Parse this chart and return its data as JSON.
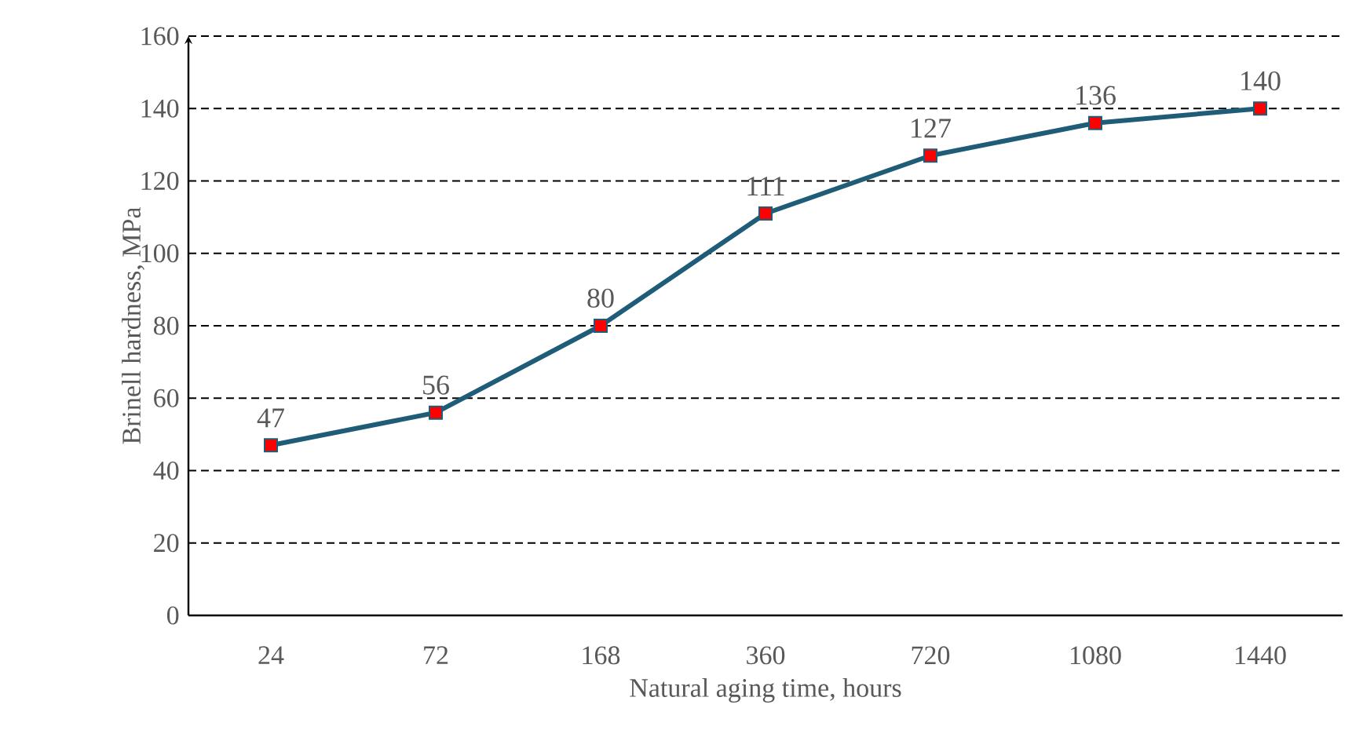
{
  "chart_data": {
    "type": "line",
    "xlabel": "Natural aging time, hours",
    "ylabel": "Brinell hardness, MPa",
    "categories": [
      "24",
      "72",
      "168",
      "360",
      "720",
      "1080",
      "1440"
    ],
    "series": [
      {
        "color": "#1f5c78",
        "colors": [
          "#ff0000",
          "#ff0000",
          "#ff0000",
          "#ff0000",
          "#ff0000",
          "#ff0000",
          "#ff0000"
        ],
        "values": [
          47,
          56,
          80,
          111,
          127,
          136,
          140
        ]
      }
    ],
    "ylim": [
      0,
      160
    ],
    "yticks": [
      0,
      20,
      40,
      60,
      80,
      100,
      120,
      140,
      160
    ],
    "grid": "y",
    "marker": "square",
    "line_style": "solid",
    "data_labels": true
  }
}
